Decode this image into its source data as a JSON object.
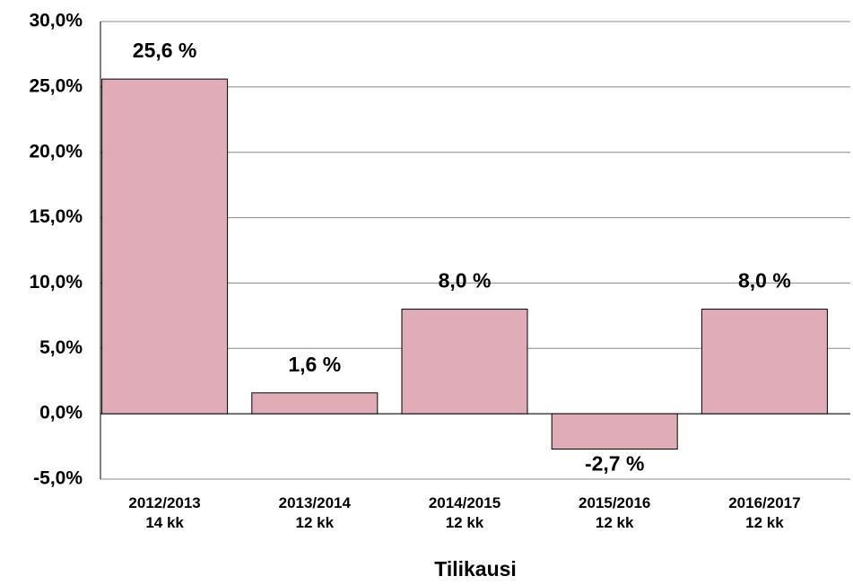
{
  "chart_data": {
    "type": "bar",
    "x_label": "Tilikausi",
    "categories": [
      "2012/2013\n14 kk",
      "2013/2014\n12 kk",
      "2014/2015\n12 kk",
      "2015/2016\n12 kk",
      "2016/2017\n12 kk"
    ],
    "values": [
      25.6,
      1.6,
      8.0,
      -2.7,
      8.0
    ],
    "value_labels": [
      "25,6 %",
      "1,6 %",
      "8,0 %",
      "-2,7 %",
      "8,0 %"
    ],
    "color": "#e0acb8",
    "ylim": [
      -5,
      30
    ],
    "yticks": [
      {
        "value": -5,
        "label": "-5,0%"
      },
      {
        "value": 0,
        "label": "0,0%"
      },
      {
        "value": 5,
        "label": "5,0%"
      },
      {
        "value": 10,
        "label": "10,0%"
      },
      {
        "value": 15,
        "label": "15,0%"
      },
      {
        "value": 20,
        "label": "20,0%"
      },
      {
        "value": 25,
        "label": "25,0%"
      },
      {
        "value": 30,
        "label": "30,0%"
      }
    ],
    "grid": true
  }
}
